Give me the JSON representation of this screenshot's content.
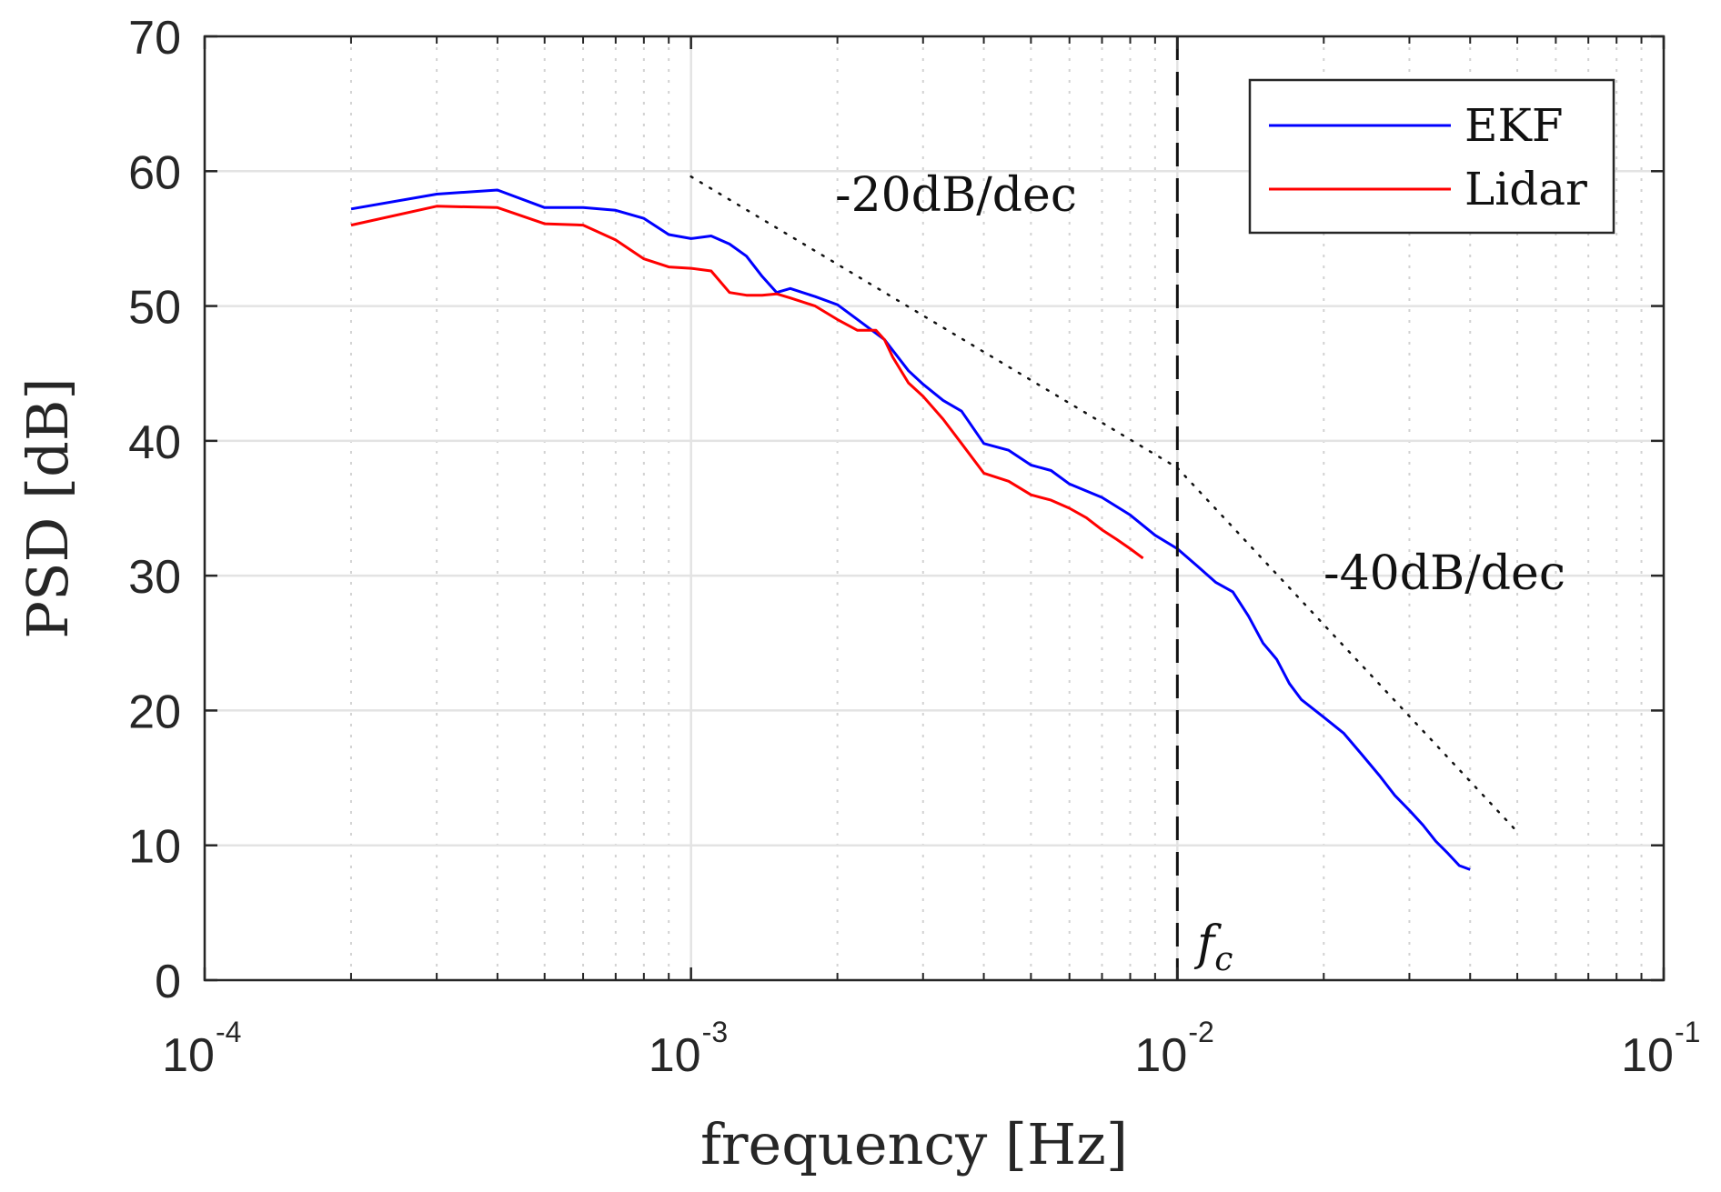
{
  "chart_data": {
    "type": "line",
    "title": "",
    "xlabel": "frequency [Hz]",
    "ylabel": "PSD [dB]",
    "xscale": "log",
    "xlim": [
      0.0001,
      0.1
    ],
    "ylim": [
      0,
      70
    ],
    "grid": true,
    "legend_position": "top-right",
    "x_ticks": [
      {
        "value": 0.0001,
        "base": "10",
        "exp": "-4"
      },
      {
        "value": 0.001,
        "base": "10",
        "exp": "-3"
      },
      {
        "value": 0.01,
        "base": "10",
        "exp": "-2"
      },
      {
        "value": 0.1,
        "base": "10",
        "exp": "-1"
      }
    ],
    "y_ticks": [
      0,
      10,
      20,
      30,
      40,
      50,
      60,
      70
    ],
    "y_tick_labels": [
      "0",
      "10",
      "20",
      "30",
      "40",
      "50",
      "60",
      "70"
    ],
    "series": [
      {
        "name": "EKF",
        "color": "#0000ff",
        "x": [
          0.0002,
          0.0003,
          0.0004,
          0.0005,
          0.0006,
          0.0007,
          0.0008,
          0.0009,
          0.001,
          0.0011,
          0.0012,
          0.0013,
          0.0014,
          0.0015,
          0.0016,
          0.0018,
          0.002,
          0.0022,
          0.0025,
          0.0028,
          0.003,
          0.0033,
          0.0036,
          0.004,
          0.0045,
          0.005,
          0.0055,
          0.006,
          0.007,
          0.008,
          0.009,
          0.01,
          0.011,
          0.012,
          0.013,
          0.014,
          0.015,
          0.016,
          0.017,
          0.018,
          0.02,
          0.022,
          0.024,
          0.026,
          0.028,
          0.03,
          0.032,
          0.034,
          0.036,
          0.038,
          0.04
        ],
        "values": [
          57.2,
          58.3,
          58.6,
          57.3,
          57.3,
          57.1,
          56.5,
          55.3,
          55.0,
          55.2,
          54.6,
          53.7,
          52.2,
          51.0,
          51.3,
          50.7,
          50.1,
          49.0,
          47.5,
          45.2,
          44.2,
          43.0,
          42.2,
          39.8,
          39.3,
          38.2,
          37.8,
          36.8,
          35.8,
          34.5,
          33.0,
          32.0,
          30.7,
          29.5,
          28.8,
          27.0,
          25.0,
          23.8,
          22.0,
          20.8,
          19.5,
          18.3,
          16.7,
          15.2,
          13.7,
          12.6,
          11.5,
          10.3,
          9.4,
          8.5,
          8.2
        ]
      },
      {
        "name": "Lidar",
        "color": "#ff0000",
        "x": [
          0.0002,
          0.0003,
          0.0004,
          0.0005,
          0.0006,
          0.0007,
          0.0008,
          0.0009,
          0.001,
          0.0011,
          0.0012,
          0.0013,
          0.0014,
          0.0015,
          0.0016,
          0.0018,
          0.002,
          0.0022,
          0.0024,
          0.0025,
          0.0026,
          0.0028,
          0.003,
          0.0033,
          0.0036,
          0.004,
          0.0045,
          0.005,
          0.0055,
          0.006,
          0.0065,
          0.007,
          0.0075,
          0.008,
          0.0085
        ],
        "values": [
          56.0,
          57.4,
          57.3,
          56.1,
          56.0,
          54.9,
          53.5,
          52.9,
          52.8,
          52.6,
          51.0,
          50.8,
          50.8,
          50.9,
          50.6,
          50.0,
          49.0,
          48.2,
          48.2,
          47.5,
          46.2,
          44.3,
          43.3,
          41.6,
          39.8,
          37.6,
          37.0,
          36.0,
          35.6,
          35.0,
          34.3,
          33.4,
          32.7,
          32.0,
          31.3
        ]
      }
    ],
    "reference_lines": [
      {
        "label": "-20dB/dec",
        "style": "dotted",
        "x": [
          0.001,
          0.01
        ],
        "y": [
          59.6,
          38.0
        ]
      },
      {
        "label": "-40dB/dec",
        "style": "dotted",
        "x": [
          0.01,
          0.05
        ],
        "y": [
          38.0,
          11.0
        ]
      }
    ],
    "vertical_line": {
      "x": 0.01,
      "style": "dashed",
      "label_base": "f",
      "label_sub": "c"
    }
  }
}
